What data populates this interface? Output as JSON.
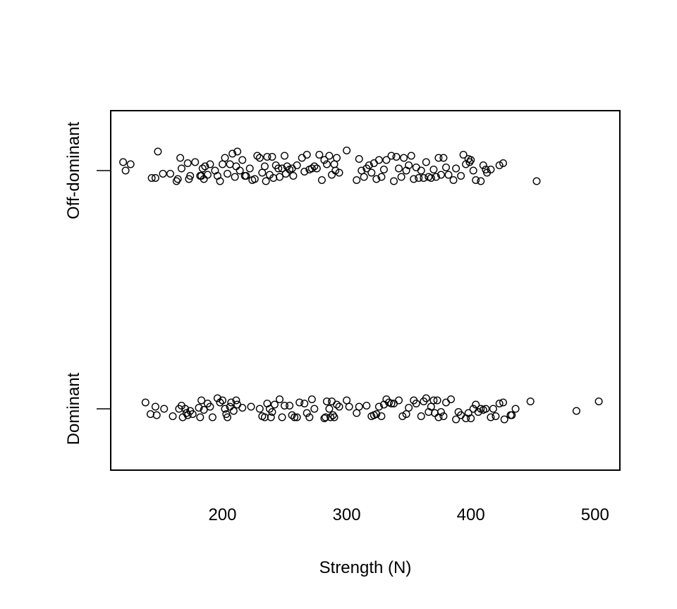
{
  "chart_data": {
    "type": "scatter",
    "title": "",
    "xlabel": "Strength (N)",
    "ylabel": "",
    "xlim": [
      110,
      520
    ],
    "xticks": [
      200,
      300,
      400,
      500
    ],
    "xtick_labels": [
      "200",
      "300",
      "400",
      "500"
    ],
    "categories": [
      "Dominant",
      "Off-dominant"
    ],
    "jitter_note": "",
    "series": [
      {
        "category": "Off-dominant",
        "points": [
          [
            120,
            0.08
          ],
          [
            122,
            0.0
          ],
          [
            126,
            0.06
          ],
          [
            143,
            -0.07
          ],
          [
            146,
            -0.07
          ],
          [
            148,
            0.18
          ],
          [
            152,
            -0.03
          ],
          [
            158,
            -0.03
          ],
          [
            163,
            -0.1
          ],
          [
            164,
            -0.08
          ],
          [
            166,
            0.12
          ],
          [
            167,
            0.02
          ],
          [
            172,
            0.07
          ],
          [
            173,
            -0.08
          ],
          [
            174,
            -0.05
          ],
          [
            178,
            0.08
          ],
          [
            182,
            -0.05
          ],
          [
            183,
            -0.05
          ],
          [
            184,
            0.02
          ],
          [
            185,
            -0.08
          ],
          [
            186,
            0.04
          ],
          [
            188,
            -0.04
          ],
          [
            190,
            0.06
          ],
          [
            194,
            0.0
          ],
          [
            196,
            -0.05
          ],
          [
            198,
            -0.1
          ],
          [
            200,
            0.06
          ],
          [
            202,
            0.12
          ],
          [
            204,
            -0.03
          ],
          [
            206,
            0.06
          ],
          [
            208,
            0.16
          ],
          [
            210,
            -0.06
          ],
          [
            211,
            0.04
          ],
          [
            212,
            0.18
          ],
          [
            214,
            0.0
          ],
          [
            216,
            0.1
          ],
          [
            218,
            -0.05
          ],
          [
            219,
            -0.05
          ],
          [
            222,
            0.02
          ],
          [
            224,
            -0.09
          ],
          [
            226,
            -0.08
          ],
          [
            228,
            0.14
          ],
          [
            230,
            0.12
          ],
          [
            232,
            -0.02
          ],
          [
            234,
            0.04
          ],
          [
            235,
            -0.1
          ],
          [
            236,
            0.13
          ],
          [
            238,
            -0.04
          ],
          [
            240,
            0.13
          ],
          [
            241,
            -0.07
          ],
          [
            243,
            0.05
          ],
          [
            245,
            0.02
          ],
          [
            246,
            -0.06
          ],
          [
            248,
            0.02
          ],
          [
            250,
            0.14
          ],
          [
            251,
            -0.03
          ],
          [
            252,
            0.04
          ],
          [
            254,
            0.01
          ],
          [
            256,
            0.02
          ],
          [
            257,
            -0.05
          ],
          [
            260,
            0.05
          ],
          [
            264,
            0.12
          ],
          [
            266,
            -0.01
          ],
          [
            268,
            0.15
          ],
          [
            270,
            0.01
          ],
          [
            272,
            0.02
          ],
          [
            274,
            0.04
          ],
          [
            276,
            0.02
          ],
          [
            278,
            0.15
          ],
          [
            280,
            -0.09
          ],
          [
            282,
            0.1
          ],
          [
            284,
            0.06
          ],
          [
            286,
            0.14
          ],
          [
            288,
            -0.04
          ],
          [
            290,
            0.06
          ],
          [
            291,
            0.0
          ],
          [
            292,
            0.12
          ],
          [
            294,
            -0.02
          ],
          [
            300,
            0.19
          ],
          [
            308,
            -0.09
          ],
          [
            310,
            0.11
          ],
          [
            312,
            0.0
          ],
          [
            314,
            -0.06
          ],
          [
            316,
            0.02
          ],
          [
            318,
            0.05
          ],
          [
            320,
            -0.02
          ],
          [
            322,
            0.07
          ],
          [
            324,
            -0.08
          ],
          [
            326,
            0.1
          ],
          [
            328,
            -0.06
          ],
          [
            330,
            0.01
          ],
          [
            332,
            0.1
          ],
          [
            336,
            0.14
          ],
          [
            338,
            -0.1
          ],
          [
            340,
            0.13
          ],
          [
            342,
            0.02
          ],
          [
            344,
            -0.06
          ],
          [
            346,
            0.12
          ],
          [
            348,
            0.0
          ],
          [
            350,
            0.05
          ],
          [
            352,
            0.14
          ],
          [
            354,
            -0.08
          ],
          [
            356,
            0.03
          ],
          [
            358,
            -0.07
          ],
          [
            360,
            0.0
          ],
          [
            362,
            -0.07
          ],
          [
            364,
            0.08
          ],
          [
            366,
            -0.06
          ],
          [
            368,
            -0.07
          ],
          [
            370,
            0.01
          ],
          [
            372,
            -0.06
          ],
          [
            374,
            0.12
          ],
          [
            376,
            -0.04
          ],
          [
            378,
            0.12
          ],
          [
            380,
            0.03
          ],
          [
            382,
            -0.04
          ],
          [
            386,
            -0.09
          ],
          [
            388,
            0.02
          ],
          [
            392,
            -0.05
          ],
          [
            394,
            0.15
          ],
          [
            396,
            0.06
          ],
          [
            398,
            0.11
          ],
          [
            399,
            0.08
          ],
          [
            400,
            0.1
          ],
          [
            402,
            0.0
          ],
          [
            404,
            -0.09
          ],
          [
            408,
            -0.1
          ],
          [
            410,
            0.05
          ],
          [
            412,
            0.01
          ],
          [
            413,
            -0.02
          ],
          [
            416,
            0.01
          ],
          [
            423,
            0.05
          ],
          [
            426,
            0.07
          ],
          [
            453,
            -0.1
          ]
        ]
      },
      {
        "category": "Dominant",
        "points": [
          [
            138,
            0.06
          ],
          [
            142,
            -0.05
          ],
          [
            146,
            0.02
          ],
          [
            147,
            -0.06
          ],
          [
            153,
            0.0
          ],
          [
            160,
            -0.07
          ],
          [
            165,
            0.0
          ],
          [
            167,
            0.03
          ],
          [
            168,
            -0.08
          ],
          [
            170,
            0.0
          ],
          [
            171,
            -0.04
          ],
          [
            172,
            -0.06
          ],
          [
            174,
            -0.02
          ],
          [
            176,
            -0.05
          ],
          [
            181,
            0.01
          ],
          [
            182,
            -0.08
          ],
          [
            183,
            0.08
          ],
          [
            185,
            -0.01
          ],
          [
            188,
            0.05
          ],
          [
            190,
            0.02
          ],
          [
            192,
            -0.08
          ],
          [
            196,
            0.1
          ],
          [
            198,
            0.06
          ],
          [
            200,
            0.08
          ],
          [
            202,
            0.0
          ],
          [
            203,
            -0.05
          ],
          [
            204,
            -0.08
          ],
          [
            206,
            0.02
          ],
          [
            207,
            0.06
          ],
          [
            209,
            -0.02
          ],
          [
            211,
            0.08
          ],
          [
            212,
            0.04
          ],
          [
            216,
            0.01
          ],
          [
            223,
            0.02
          ],
          [
            230,
            0.0
          ],
          [
            232,
            -0.07
          ],
          [
            234,
            -0.08
          ],
          [
            236,
            0.05
          ],
          [
            238,
            0.0
          ],
          [
            239,
            -0.08
          ],
          [
            240,
            -0.03
          ],
          [
            242,
            0.04
          ],
          [
            246,
            0.09
          ],
          [
            248,
            -0.08
          ],
          [
            250,
            0.03
          ],
          [
            254,
            0.03
          ],
          [
            256,
            -0.06
          ],
          [
            258,
            -0.08
          ],
          [
            260,
            -0.08
          ],
          [
            262,
            0.06
          ],
          [
            266,
            0.05
          ],
          [
            268,
            -0.04
          ],
          [
            270,
            -0.08
          ],
          [
            272,
            0.09
          ],
          [
            274,
            0.0
          ],
          [
            282,
            -0.09
          ],
          [
            283,
            -0.08
          ],
          [
            284,
            0.07
          ],
          [
            286,
            0.0
          ],
          [
            287,
            -0.08
          ],
          [
            288,
            0.07
          ],
          [
            289,
            -0.06
          ],
          [
            290,
            -0.08
          ],
          [
            292,
            0.04
          ],
          [
            294,
            0.02
          ],
          [
            300,
            0.08
          ],
          [
            302,
            0.02
          ],
          [
            308,
            -0.04
          ],
          [
            310,
            0.02
          ],
          [
            316,
            0.03
          ],
          [
            320,
            -0.07
          ],
          [
            322,
            -0.06
          ],
          [
            324,
            -0.05
          ],
          [
            326,
            0.02
          ],
          [
            328,
            -0.07
          ],
          [
            330,
            0.04
          ],
          [
            332,
            0.09
          ],
          [
            334,
            0.06
          ],
          [
            336,
            0.05
          ],
          [
            338,
            0.05
          ],
          [
            342,
            0.08
          ],
          [
            345,
            -0.07
          ],
          [
            348,
            -0.05
          ],
          [
            350,
            0.01
          ],
          [
            354,
            0.08
          ],
          [
            356,
            0.05
          ],
          [
            360,
            -0.07
          ],
          [
            362,
            0.07
          ],
          [
            364,
            0.1
          ],
          [
            366,
            -0.03
          ],
          [
            368,
            0.02
          ],
          [
            370,
            0.08
          ],
          [
            371,
            -0.04
          ],
          [
            373,
            0.08
          ],
          [
            374,
            -0.08
          ],
          [
            376,
            -0.03
          ],
          [
            378,
            -0.07
          ],
          [
            380,
            0.06
          ],
          [
            384,
            0.09
          ],
          [
            388,
            -0.1
          ],
          [
            390,
            -0.03
          ],
          [
            392,
            -0.06
          ],
          [
            396,
            -0.09
          ],
          [
            398,
            -0.04
          ],
          [
            400,
            -0.09
          ],
          [
            402,
            0.0
          ],
          [
            404,
            0.04
          ],
          [
            406,
            -0.03
          ],
          [
            408,
            0.0
          ],
          [
            410,
            -0.01
          ],
          [
            412,
            0.0
          ],
          [
            416,
            -0.08
          ],
          [
            418,
            0.0
          ],
          [
            420,
            -0.07
          ],
          [
            423,
            0.05
          ],
          [
            426,
            0.06
          ],
          [
            427,
            -0.1
          ],
          [
            432,
            -0.06
          ],
          [
            433,
            -0.06
          ],
          [
            436,
            0.0
          ],
          [
            448,
            0.07
          ],
          [
            485,
            -0.02
          ],
          [
            503,
            0.07
          ]
        ]
      }
    ],
    "grid": false,
    "legend": "none"
  }
}
